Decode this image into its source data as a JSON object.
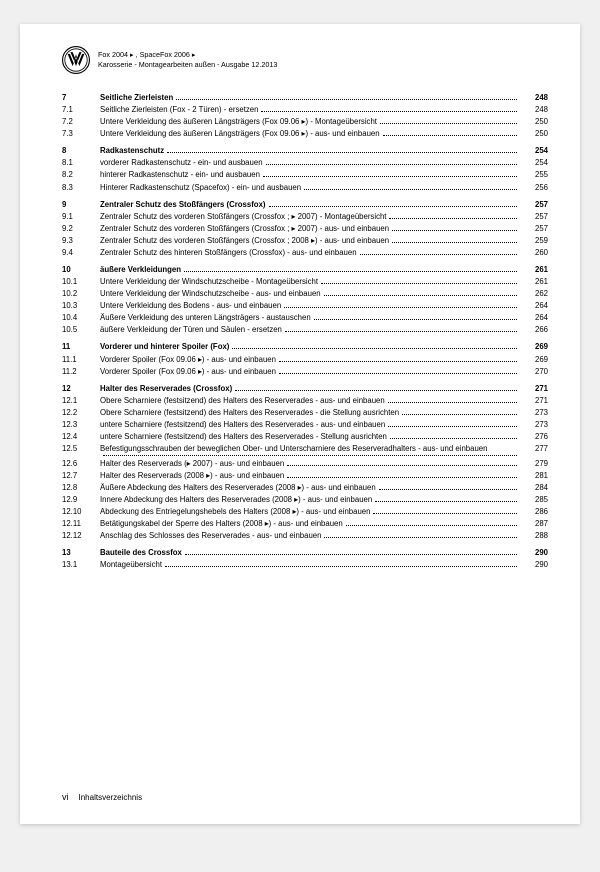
{
  "header": {
    "line1": "Fox 2004 ▸ , SpaceFox 2006 ▸",
    "line2": "Karosserie - Montagearbeiten außen - Ausgabe 12.2013"
  },
  "footer": {
    "page": "vi",
    "label": "Inhaltsverzeichnis"
  },
  "toc": {
    "rows": [
      {
        "num": "7",
        "title": "Seitliche Zierleisten",
        "page": "248",
        "bold": true,
        "gap": true
      },
      {
        "num": "7.1",
        "title": "Seitliche Zierleisten (Fox - 2 Türen) - ersetzen",
        "page": "248"
      },
      {
        "num": "7.2",
        "title": "Untere Verkleidung des äußeren Längsträgers (Fox 09.06 ▸) - Montageübersicht",
        "page": "250"
      },
      {
        "num": "7.3",
        "title": "Untere Verkleidung des äußeren Längsträgers (Fox 09.06 ▸) - aus- und einbauen",
        "page": "250"
      },
      {
        "num": "8",
        "title": "Radkastenschutz",
        "page": "254",
        "bold": true,
        "gap": true
      },
      {
        "num": "8.1",
        "title": "vorderer Radkastenschutz - ein- und ausbauen",
        "page": "254"
      },
      {
        "num": "8.2",
        "title": "hinterer Radkastenschutz - ein- und ausbauen",
        "page": "255"
      },
      {
        "num": "8.3",
        "title": "Hinterer Radkastenschutz (Spacefox) - ein- und ausbauen",
        "page": "256"
      },
      {
        "num": "9",
        "title": "Zentraler Schutz des Stoßfängers (Crossfox)",
        "page": "257",
        "bold": true,
        "gap": true
      },
      {
        "num": "9.1",
        "title": "Zentraler Schutz des vorderen Stoßfängers (Crossfox ; ▸ 2007) - Montageübersicht",
        "page": "257"
      },
      {
        "num": "9.2",
        "title": "Zentraler Schutz des vorderen Stoßfängers (Crossfox ; ▸ 2007) - aus- und einbauen",
        "page": "257"
      },
      {
        "num": "9.3",
        "title": "Zentraler Schutz des vorderen Stoßfängers (Crossfox ; 2008 ▸) - aus- und einbauen",
        "page": "259"
      },
      {
        "num": "9.4",
        "title": "Zentraler Schutz des hinteren Stoßfängers (Crossfox) - aus- und einbauen",
        "page": "260"
      },
      {
        "num": "10",
        "title": "äußere Verkleidungen",
        "page": "261",
        "bold": true,
        "gap": true
      },
      {
        "num": "10.1",
        "title": "Untere Verkleidung der Windschutzscheibe - Montageübersicht",
        "page": "261"
      },
      {
        "num": "10.2",
        "title": "Untere Verkleidung der Windschutzscheibe - aus- und einbauen",
        "page": "262"
      },
      {
        "num": "10.3",
        "title": "Untere Verkleidung des Bodens - aus- und einbauen",
        "page": "264"
      },
      {
        "num": "10.4",
        "title": "Äußere Verkleidung des unteren Längsträgers - austauschen",
        "page": "264"
      },
      {
        "num": "10.5",
        "title": "äußere Verkleidung der Türen und Säulen - ersetzen",
        "page": "266"
      },
      {
        "num": "11",
        "title": "Vorderer und hinterer Spoiler (Fox)",
        "page": "269",
        "bold": true,
        "gap": true
      },
      {
        "num": "11.1",
        "title": "Vorderer Spoiler (Fox 09.06 ▸) - aus- und einbauen",
        "page": "269"
      },
      {
        "num": "11.2",
        "title": "Vorderer Spoiler (Fox 09.06 ▸) - aus- und einbauen",
        "page": "270"
      },
      {
        "num": "12",
        "title": "Halter des Reserverades (Crossfox)",
        "page": "271",
        "bold": true,
        "gap": true
      },
      {
        "num": "12.1",
        "title": "Obere Scharniere (festsitzend) des Halters des Reserverades - aus- und einbauen",
        "page": "271"
      },
      {
        "num": "12.2",
        "title": "Obere Scharniere (festsitzend) des Halters des Reserverades - die Stellung ausrichten",
        "page": "273"
      },
      {
        "num": "12.3",
        "title": "untere Scharniere (festsitzend) des Halters des Reserverades - aus- und einbauen",
        "page": "273"
      },
      {
        "num": "12.4",
        "title": "untere Scharniere (festsitzend) des Halters des Reserverades - Stellung ausrichten",
        "page": "276"
      },
      {
        "num": "12.5",
        "title": "Befestigungsschrauben der beweglichen Ober- und Unterscharniere des Reserveradhalters - aus- und einbauen",
        "page": "277",
        "wrap": true
      },
      {
        "num": "12.6",
        "title": "Halter des Reserverads (▸ 2007) - aus- und einbauen",
        "page": "279"
      },
      {
        "num": "12.7",
        "title": "Halter des Reserverads (2008 ▸) - aus- und einbauen",
        "page": "281"
      },
      {
        "num": "12.8",
        "title": "Äußere Abdeckung des Halters des Reserverades (2008 ▸) - aus- und einbauen",
        "page": "284"
      },
      {
        "num": "12.9",
        "title": "Innere Abdeckung des Halters des Reserverades (2008 ▸) - aus- und einbauen",
        "page": "285"
      },
      {
        "num": "12.10",
        "title": "Abdeckung des Entriegelungshebels des Halters (2008 ▸) - aus- und einbauen",
        "page": "286"
      },
      {
        "num": "12.11",
        "title": "Betätigungskabel der Sperre des Halters (2008 ▸) - aus- und einbauen",
        "page": "287"
      },
      {
        "num": "12.12",
        "title": "Anschlag des Schlosses des Reserverades - aus- und einbauen",
        "page": "288"
      },
      {
        "num": "13",
        "title": "Bauteile des Crossfox",
        "page": "290",
        "bold": true,
        "gap": true
      },
      {
        "num": "13.1",
        "title": "Montageübersicht",
        "page": "290"
      }
    ]
  }
}
